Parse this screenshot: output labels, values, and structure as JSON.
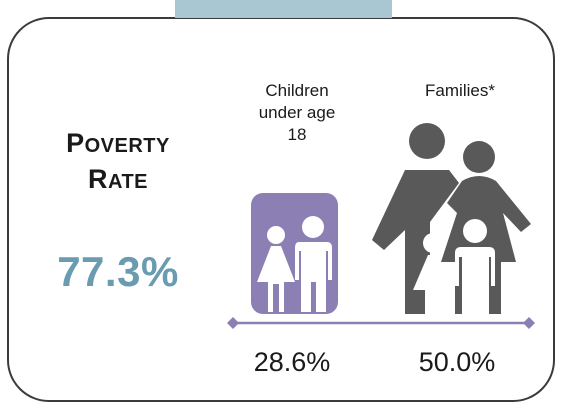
{
  "title": {
    "first_initial": "P",
    "first_rest": "OVERTY",
    "second_initial": "R",
    "second_rest": "ATE"
  },
  "overall_rate": "77.3%",
  "groups": [
    {
      "label_lines": [
        "Children",
        "under age",
        "18"
      ],
      "value": "28.6%",
      "color": "#8c7fb3"
    },
    {
      "label_lines": [
        "Families*"
      ],
      "value": "50.0%",
      "color": "#595959"
    }
  ],
  "colors": {
    "rate": "#6a9bb0",
    "tab": "#a9c7d2",
    "axis": "#8c7fb3",
    "border": "#3b3b3b"
  },
  "icons": [
    "children-icon",
    "family-icon"
  ]
}
